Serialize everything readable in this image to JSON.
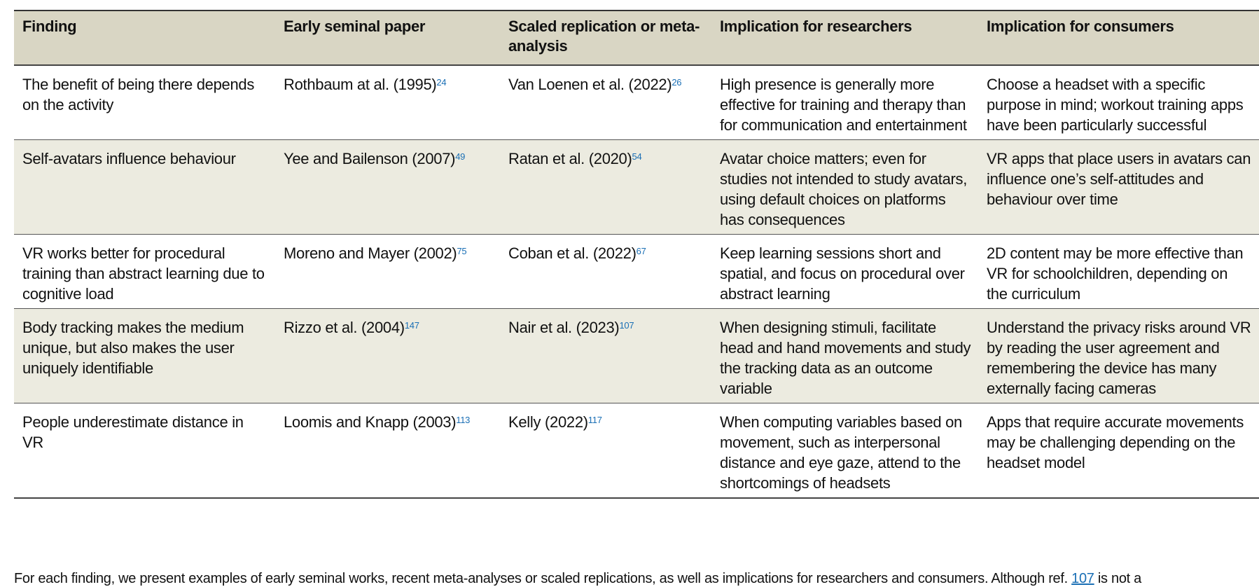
{
  "headers": [
    "Finding",
    "Early seminal paper",
    "Scaled replication or meta-analysis",
    "Implication for researchers",
    "Implication for consumers"
  ],
  "rows": [
    {
      "finding": "The benefit of being there depends on the activity",
      "seminal": "Rothbaum at al. (1995)",
      "seminal_ref": "24",
      "replication": "Van Loenen et al. (2022)",
      "replication_ref": "26",
      "researchers": "High presence is generally more effective for training and therapy than for communication and entertainment",
      "consumers": "Choose a headset with a specific purpose in mind; workout training apps have been particularly successful"
    },
    {
      "finding": "Self-avatars influence behaviour",
      "seminal": "Yee and Bailenson (2007)",
      "seminal_ref": "49",
      "replication": "Ratan et al. (2020)",
      "replication_ref": "54",
      "researchers": "Avatar choice matters; even for studies not intended to study avatars, using default choices on platforms has consequences",
      "consumers": "VR apps that place users in avatars can influence one’s self-attitudes and behaviour over time"
    },
    {
      "finding": "VR works better for procedural training than abstract learning due to cognitive load",
      "seminal": "Moreno and Mayer (2002)",
      "seminal_ref": "75",
      "replication": "Coban et al. (2022)",
      "replication_ref": "67",
      "researchers": "Keep learning sessions short and spatial, and focus on procedural over abstract learning",
      "consumers": "2D content may be more effective than VR for schoolchildren, depending on the curriculum"
    },
    {
      "finding": "Body tracking makes the medium unique, but also makes the user uniquely identifiable",
      "seminal": "Rizzo et al. (2004)",
      "seminal_ref": "147",
      "replication": "Nair et al. (2023)",
      "replication_ref": "107",
      "researchers": "When designing stimuli, facilitate head and hand movements and study the tracking data as an outcome variable",
      "consumers": "Understand the privacy risks around VR by reading the user agreement and remembering the device has many externally facing cameras"
    },
    {
      "finding": "People underestimate distance in VR",
      "seminal": "Loomis and Knapp (2003)",
      "seminal_ref": "113",
      "replication": "Kelly (2022)",
      "replication_ref": "117",
      "researchers": "When computing variables based on movement, such as interpersonal distance and eye gaze, attend to the shortcomings of headsets",
      "consumers": "Apps that require accurate movements may be challenging depending on the headset model"
    }
  ],
  "footnote": {
    "before": "For each finding, we present examples of early seminal works, recent meta-analyses or scaled replications, as well as implications for researchers and consumers. Although ref. ",
    "link": "107",
    "after": " is not a"
  },
  "colors": {
    "header_bg": "#d9d6c4",
    "alt_row_bg": "#ecebe0",
    "ref_link": "#1a6fb5"
  }
}
